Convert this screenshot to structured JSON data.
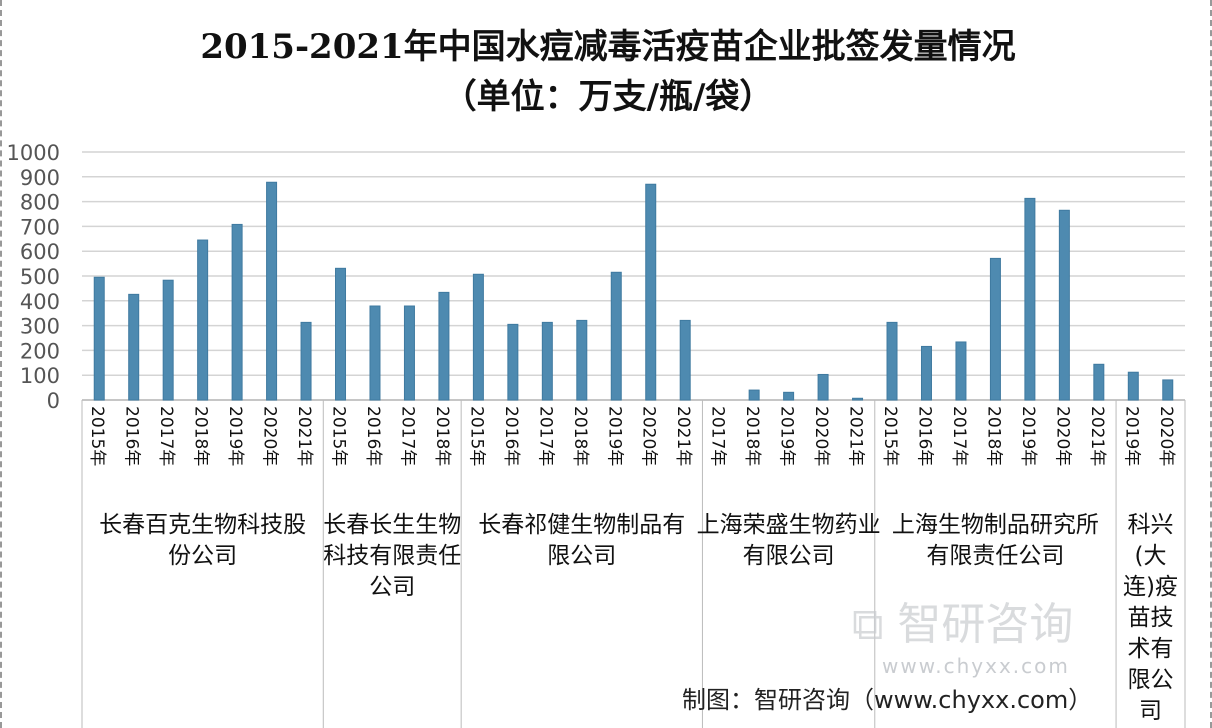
{
  "chart_data": {
    "type": "bar",
    "title": "2015-2021年中国水痘减毒活疫苗企业批签发量情况",
    "subtitle": "（单位：万支/瓶/袋）",
    "ylim": [
      0,
      1000
    ],
    "yticks": [
      0,
      100,
      200,
      300,
      400,
      500,
      600,
      700,
      800,
      900,
      1000
    ],
    "grid": true,
    "bar_color": "#4e8ab0",
    "groups": [
      {
        "name": "长春百克生物科技股份公司",
        "lines": [
          "长春百克生物科技股",
          "份公司"
        ],
        "years": [
          "2015年",
          "2016年",
          "2017年",
          "2018年",
          "2019年",
          "2020年",
          "2021年"
        ],
        "values": [
          495,
          426,
          483,
          645,
          708,
          878,
          313
        ]
      },
      {
        "name": "长春长生生物科技有限责任公司",
        "lines": [
          "长春长生生物",
          "科技有限责任",
          "公司"
        ],
        "years": [
          "2015年",
          "2016年",
          "2017年",
          "2018年"
        ],
        "values": [
          531,
          379,
          379,
          434
        ]
      },
      {
        "name": "长春祁健生物制品有限公司",
        "lines": [
          "长春祁健生物制品有",
          "限公司"
        ],
        "years": [
          "2015年",
          "2016年",
          "2017年",
          "2018年",
          "2019年",
          "2020年",
          "2021年"
        ],
        "values": [
          507,
          305,
          313,
          321,
          515,
          870,
          321
        ]
      },
      {
        "name": "上海荣盛生物药业有限公司",
        "lines": [
          "上海荣盛生物药业",
          "有限公司"
        ],
        "years": [
          "2017年",
          "2018年",
          "2019年",
          "2020年",
          "2021年"
        ],
        "values": [
          0,
          40,
          31,
          103,
          7
        ]
      },
      {
        "name": "上海生物制品研究所有限责任公司",
        "lines": [
          "上海生物制品研究所",
          "有限责任公司"
        ],
        "years": [
          "2015年",
          "2016年",
          "2017年",
          "2018年",
          "2019年",
          "2020年",
          "2021年"
        ],
        "values": [
          313,
          216,
          234,
          571,
          813,
          765,
          144
        ]
      },
      {
        "name": "科兴(大连)疫苗技术有限公司",
        "lines": [
          "科兴",
          "(大",
          "连)疫",
          "苗技",
          "术有",
          "限公",
          "司"
        ],
        "years": [
          "2019年",
          "2020年"
        ],
        "values": [
          112,
          81
        ]
      }
    ]
  },
  "watermark": {
    "logo_text": "智研咨询",
    "url_text": "www.chyxx.com"
  },
  "source": "制图：智研咨询（www.chyxx.com）"
}
